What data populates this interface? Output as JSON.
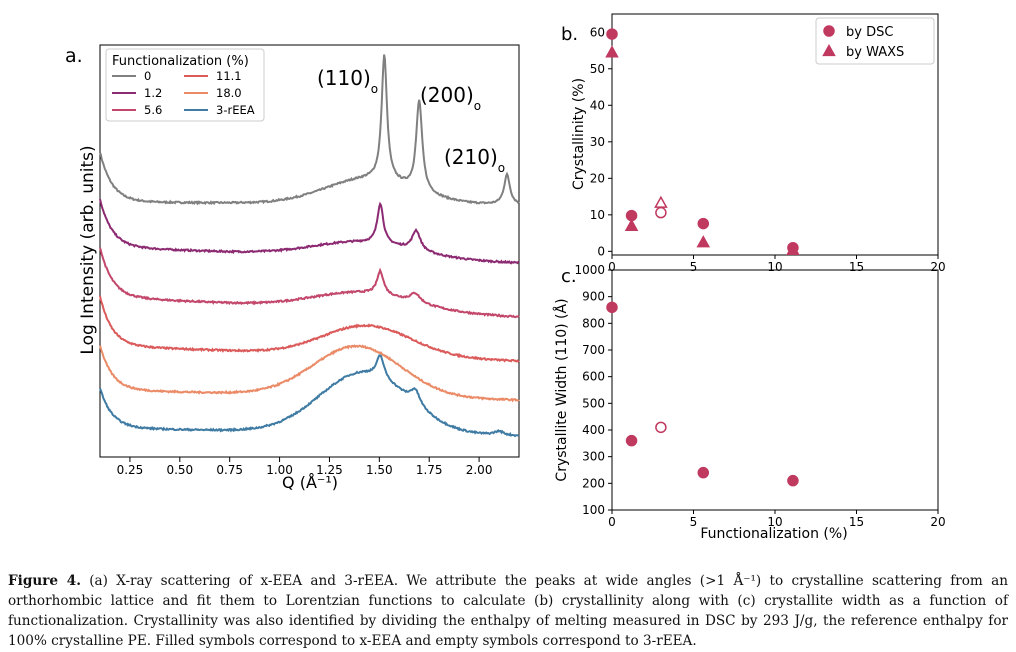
{
  "panel_a": {
    "letter": "a.",
    "xlabel": "Q (Å⁻¹)",
    "ylabel": "Log Intensity (arb. units)",
    "legend_title": "Functionalization (%)",
    "peak_labels": [
      "(110)",
      "(200)",
      "(210)"
    ],
    "peak_subscript": "o"
  },
  "panel_b": {
    "letter": "b.",
    "ylabel": "Crystallinity (%)"
  },
  "panel_c": {
    "letter": "c.",
    "ylabel": "Crystallite Width (110) (Å)",
    "xlabel": "Functionalization (%)"
  },
  "caption": {
    "label": "Figure 4.",
    "text": "(a) X-ray scattering of x-EEA and 3-rEEA. We attribute the peaks at wide angles (>1 Å⁻¹) to crystalline scattering from an orthorhombic lattice and fit them to Lorentzian functions to calculate (b) crystallinity along with (c) crystallite width as a function of functionalization. Crystallinity was also identified by dividing the enthalpy of melting measured in DSC by 293 J/g, the reference enthalpy for 100% crystalline PE. Filled symbols correspond to x-EEA and empty symbols correspond to 3-rEEA."
  },
  "chart_data": [
    {
      "type": "line",
      "title": "",
      "xlabel": "Q (Å⁻¹)",
      "ylabel": "Log Intensity (arb. units)",
      "xlim": [
        0.1,
        2.2
      ],
      "xticks": [
        0.25,
        0.5,
        0.75,
        1.0,
        1.25,
        1.5,
        1.75,
        2.0
      ],
      "xtick_labels": [
        "0.25",
        "0.50",
        "0.75",
        "1.00",
        "1.25",
        "1.50",
        "1.75",
        "2.00"
      ],
      "y_ticks_shown": false,
      "legend_placement": "top-left",
      "series": [
        {
          "name": "0",
          "color": "#808080",
          "baseline": 202,
          "left_rise": 50,
          "mid_dip": 0,
          "slope": 3,
          "hump": [
            1.45,
            0.22,
            25
          ],
          "peaks": [
            [
              1.525,
              0.016,
              125
            ],
            [
              1.7,
              0.018,
              90
            ],
            [
              2.14,
              0.018,
              30
            ]
          ]
        },
        {
          "name": "1.2",
          "color": "#8c2a72",
          "baseline": 247,
          "left_rise": 48,
          "mid_dip": 0,
          "slope": 16,
          "hump": [
            1.42,
            0.25,
            15
          ],
          "peaks": [
            [
              1.505,
              0.018,
              40
            ],
            [
              1.685,
              0.025,
              20
            ]
          ]
        },
        {
          "name": "5.6",
          "color": "#c2476b",
          "baseline": 297,
          "left_rise": 50,
          "mid_dip": 0,
          "slope": 20,
          "hump": [
            1.42,
            0.25,
            17
          ],
          "peaks": [
            [
              1.505,
              0.02,
              23
            ],
            [
              1.68,
              0.03,
              9
            ]
          ]
        },
        {
          "name": "11.1",
          "color": "#db5a5a",
          "baseline": 346,
          "left_rise": 50,
          "mid_dip": 0,
          "slope": 15,
          "hump": [
            1.44,
            0.22,
            30
          ],
          "peaks": []
        },
        {
          "name": "18.0",
          "color": "#eb8a66",
          "baseline": 390,
          "left_rise": 45,
          "mid_dip": 0,
          "slope": 10,
          "hump": [
            1.39,
            0.22,
            50
          ],
          "peaks": []
        },
        {
          "name": "3-rEEA",
          "color": "#3f7ba3",
          "baseline": 428,
          "left_rise": 40,
          "mid_dip": 0,
          "slope": 8,
          "hump": [
            1.42,
            0.22,
            60
          ],
          "peaks": [
            [
              1.505,
              0.022,
              22
            ],
            [
              1.68,
              0.03,
              15
            ],
            [
              2.1,
              0.03,
              4
            ]
          ]
        }
      ]
    },
    {
      "type": "scatter",
      "title": "",
      "xlabel": "",
      "ylabel": "Crystallinity (%)",
      "xlim": [
        0,
        20
      ],
      "ylim": [
        -1,
        65
      ],
      "xticks": [
        0,
        5,
        10,
        15,
        20
      ],
      "yticks": [
        0,
        10,
        20,
        30,
        40,
        50,
        60
      ],
      "legend_placement": "top-right",
      "series": [
        {
          "name": "by DSC",
          "marker": "circle",
          "color": "#c0395f",
          "points": [
            {
              "x": 0,
              "y": 59.5,
              "filled": true
            },
            {
              "x": 1.2,
              "y": 9.8,
              "filled": true
            },
            {
              "x": 3,
              "y": 10.6,
              "filled": false
            },
            {
              "x": 5.6,
              "y": 7.6,
              "filled": true
            },
            {
              "x": 11.1,
              "y": 1.0,
              "filled": true
            }
          ]
        },
        {
          "name": "by WAXS",
          "marker": "triangle",
          "color": "#c0395f",
          "points": [
            {
              "x": 0,
              "y": 54.5,
              "filled": true
            },
            {
              "x": 1.2,
              "y": 7.0,
              "filled": true
            },
            {
              "x": 3,
              "y": 13.3,
              "filled": false
            },
            {
              "x": 5.6,
              "y": 2.5,
              "filled": true
            },
            {
              "x": 11.1,
              "y": 0.4,
              "filled": true
            }
          ]
        }
      ]
    },
    {
      "type": "scatter",
      "title": "",
      "xlabel": "Functionalization (%)",
      "ylabel": "Crystallite Width (110) (Å)",
      "xlim": [
        0,
        20
      ],
      "ylim": [
        100,
        1000
      ],
      "xticks": [
        0,
        5,
        10,
        15,
        20
      ],
      "yticks": [
        100,
        200,
        300,
        400,
        500,
        600,
        700,
        800,
        900,
        1000
      ],
      "series": [
        {
          "name": "",
          "marker": "circle",
          "color": "#c0395f",
          "points": [
            {
              "x": 0,
              "y": 860,
              "filled": true
            },
            {
              "x": 1.2,
              "y": 360,
              "filled": true
            },
            {
              "x": 3,
              "y": 410,
              "filled": false
            },
            {
              "x": 5.6,
              "y": 240,
              "filled": true
            },
            {
              "x": 11.1,
              "y": 210,
              "filled": true
            }
          ]
        }
      ]
    }
  ]
}
